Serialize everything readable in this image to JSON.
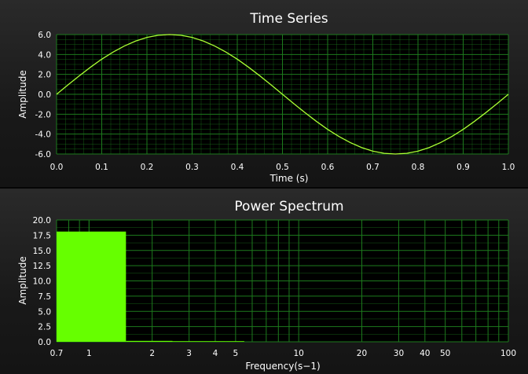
{
  "chart_data": [
    {
      "type": "line",
      "title": "Time Series",
      "xlabel": "Time (s)",
      "ylabel": "Amplitude",
      "xlim": [
        0.0,
        1.0
      ],
      "ylim": [
        -6.0,
        6.0
      ],
      "xticks": [
        "0.0",
        "0.1",
        "0.2",
        "0.3",
        "0.4",
        "0.5",
        "0.6",
        "0.7",
        "0.8",
        "0.9",
        "1.0"
      ],
      "yticks": [
        "6.0",
        "4.0",
        "2.0",
        "0.0",
        "-2.0",
        "-4.0",
        "-6.0"
      ],
      "grid": true,
      "series_color": "#aaff33",
      "grid_color": "#1d7a1d",
      "series": [
        {
          "x": [
            0.0,
            0.025,
            0.05,
            0.075,
            0.1,
            0.125,
            0.15,
            0.175,
            0.2,
            0.225,
            0.25,
            0.275,
            0.3,
            0.325,
            0.35,
            0.375,
            0.4,
            0.425,
            0.45,
            0.475,
            0.5,
            0.525,
            0.55,
            0.575,
            0.6,
            0.625,
            0.65,
            0.675,
            0.7,
            0.725,
            0.75,
            0.775,
            0.8,
            0.825,
            0.85,
            0.875,
            0.9,
            0.925,
            0.95,
            0.975,
            1.0
          ],
          "y": [
            0.0,
            0.94,
            1.85,
            2.72,
            3.53,
            4.24,
            4.85,
            5.35,
            5.71,
            5.93,
            6.0,
            5.93,
            5.71,
            5.35,
            4.85,
            4.24,
            3.53,
            2.72,
            1.85,
            0.94,
            0.0,
            -0.94,
            -1.85,
            -2.72,
            -3.53,
            -4.24,
            -4.85,
            -5.35,
            -5.71,
            -5.93,
            -6.0,
            -5.93,
            -5.71,
            -5.35,
            -4.85,
            -4.24,
            -3.53,
            -2.72,
            -1.85,
            -0.94,
            0.0
          ]
        }
      ]
    },
    {
      "type": "bar",
      "title": "Power Spectrum",
      "xlabel": "Frequency(s−1)",
      "ylabel": "Amplitude",
      "xscale": "log",
      "xlim": [
        0.7,
        100
      ],
      "ylim": [
        0.0,
        20.0
      ],
      "xticks": [
        {
          "label": "0.7",
          "value": 0.7
        },
        {
          "label": "1",
          "value": 1
        },
        {
          "label": "2",
          "value": 2
        },
        {
          "label": "3",
          "value": 3
        },
        {
          "label": "4",
          "value": 4
        },
        {
          "label": "5",
          "value": 5
        },
        {
          "label": "10",
          "value": 10
        },
        {
          "label": "20",
          "value": 20
        },
        {
          "label": "30",
          "value": 30
        },
        {
          "label": "40",
          "value": 40
        },
        {
          "label": "50",
          "value": 50
        },
        {
          "label": "100",
          "value": 100
        }
      ],
      "yticks": [
        "20.0",
        "17.5",
        "15.0",
        "12.5",
        "10.0",
        "7.5",
        "5.0",
        "2.5",
        "0.0"
      ],
      "grid": true,
      "bar_color": "#66ff00",
      "grid_color": "#1d7a1d",
      "bars": [
        {
          "x0": 0.7,
          "x1": 1.5,
          "value": 18.1
        },
        {
          "x0": 1.5,
          "x1": 2.5,
          "value": 0.15
        },
        {
          "x0": 2.5,
          "x1": 3.5,
          "value": 0.08
        },
        {
          "x0": 3.5,
          "x1": 4.5,
          "value": 0.05
        },
        {
          "x0": 4.5,
          "x1": 5.5,
          "value": 0.04
        }
      ]
    }
  ]
}
